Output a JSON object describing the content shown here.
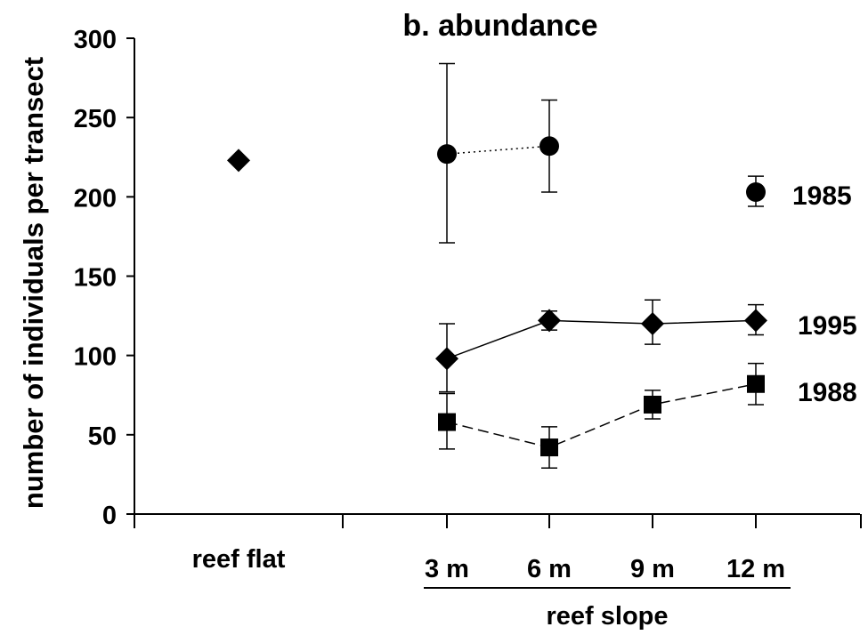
{
  "chart_data": {
    "type": "scatter",
    "title": "b. abundance",
    "ylabel": "number of individuals per transect",
    "xlabel": "reef slope",
    "ylim": [
      0,
      300
    ],
    "yticks": [
      0,
      50,
      100,
      150,
      200,
      250,
      300
    ],
    "grid": false,
    "categories": [
      "reef flat",
      "3 m",
      "6 m",
      "9 m",
      "12 m"
    ],
    "series": [
      {
        "name": "1985",
        "marker": "circle",
        "line_style": "dotted",
        "points": [
          {
            "x": "3 m",
            "y": 227,
            "err_low": 171,
            "err_high": 284
          },
          {
            "x": "6 m",
            "y": 232,
            "err_low": 203,
            "err_high": 261
          }
        ],
        "isolated_points": [
          {
            "x": "12 m",
            "y": 203,
            "err_low": 194,
            "err_high": 213
          }
        ]
      },
      {
        "name": "1995",
        "marker": "diamond",
        "line_style": "solid",
        "points": [
          {
            "x": "3 m",
            "y": 98,
            "err_low": 77,
            "err_high": 120
          },
          {
            "x": "6 m",
            "y": 122,
            "err_low": 116,
            "err_high": 128
          },
          {
            "x": "9 m",
            "y": 120,
            "err_low": 107,
            "err_high": 135
          },
          {
            "x": "12 m",
            "y": 122,
            "err_low": 113,
            "err_high": 132
          }
        ],
        "isolated_points": [
          {
            "x": "reef flat",
            "y": 223
          }
        ]
      },
      {
        "name": "1988",
        "marker": "square",
        "line_style": "dashed",
        "points": [
          {
            "x": "3 m",
            "y": 58,
            "err_low": 41,
            "err_high": 76
          },
          {
            "x": "6 m",
            "y": 42,
            "err_low": 29,
            "err_high": 55
          },
          {
            "x": "9 m",
            "y": 69,
            "err_low": 60,
            "err_high": 78
          },
          {
            "x": "12 m",
            "y": 82,
            "err_low": 69,
            "err_high": 95
          }
        ],
        "isolated_points": []
      }
    ]
  }
}
